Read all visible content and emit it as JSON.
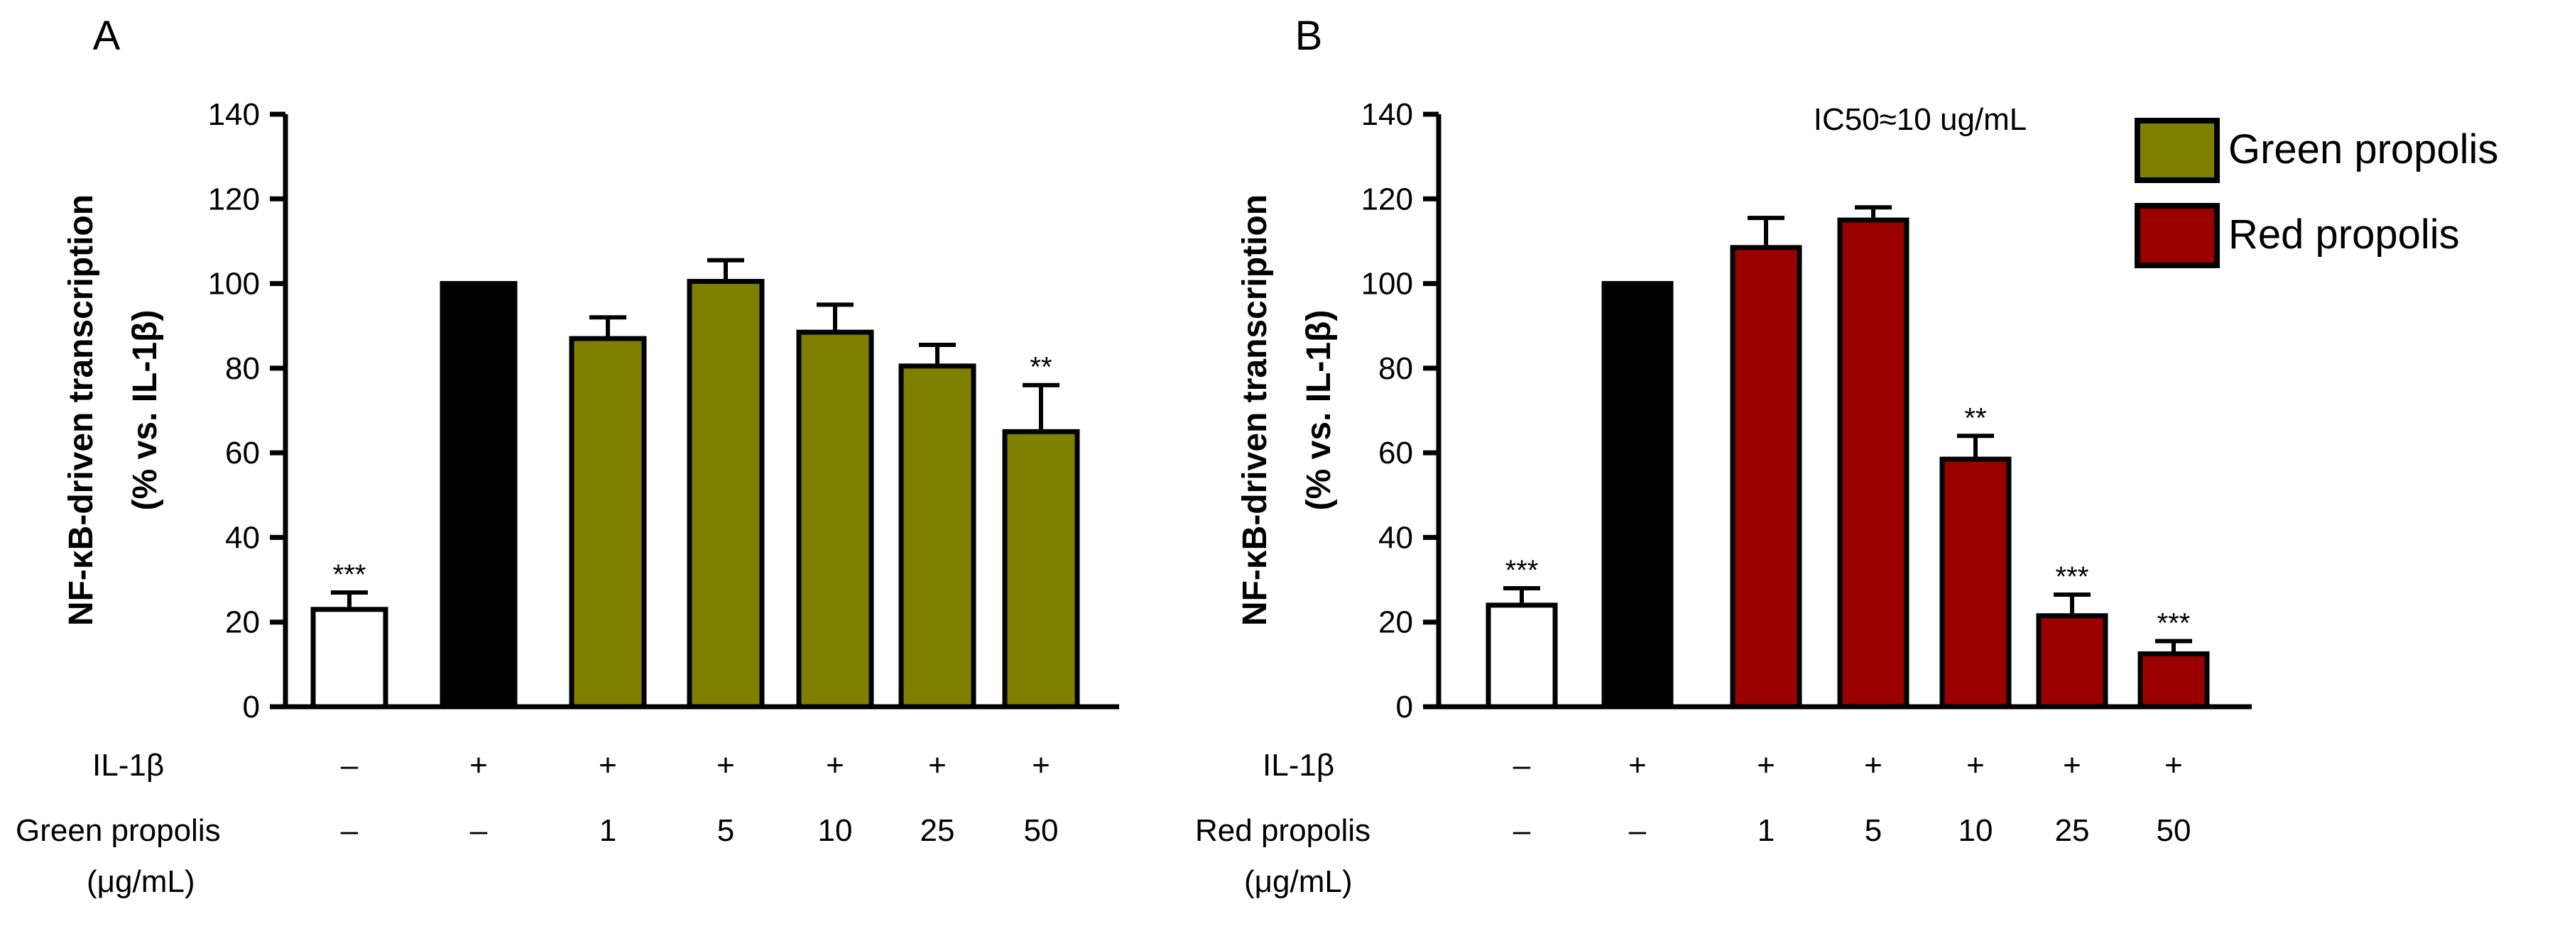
{
  "chart_data": [
    {
      "panel_label": "A",
      "type": "bar",
      "ylabel_line1": "NF-κB-driven transcription",
      "ylabel_line2": "(% vs. IL-1β)",
      "ylim": [
        0,
        140
      ],
      "yticks": [
        "0",
        "20",
        "40",
        "60",
        "80",
        "100",
        "120",
        "140"
      ],
      "values": [
        23,
        100,
        87,
        100.5,
        88.5,
        80.5,
        65
      ],
      "errors": [
        4,
        0,
        5,
        5,
        6.5,
        5,
        11
      ],
      "fills": [
        "#ffffff",
        "#000000",
        "#808000",
        "#808000",
        "#808000",
        "#808000",
        "#808000"
      ],
      "significance": [
        "***",
        "",
        "",
        "",
        "",
        "",
        "**"
      ],
      "row1_label": "IL-1β",
      "row1": [
        "–",
        "+",
        "+",
        "+",
        "+",
        "+",
        "+"
      ],
      "row2_label_line1": "Green propolis",
      "row2_label_line2": "(μg/mL)",
      "row2": [
        "–",
        "–",
        "1",
        "5",
        "10",
        "25",
        "50"
      ]
    },
    {
      "panel_label": "B",
      "type": "bar",
      "ylabel_line1": "NF-κB-driven transcription",
      "ylabel_line2": "(% vs. IL-1β)",
      "ylim": [
        0,
        140
      ],
      "yticks": [
        "0",
        "20",
        "40",
        "60",
        "80",
        "100",
        "120",
        "140"
      ],
      "annotation": "IC50≈10 ug/mL",
      "values": [
        24,
        100,
        108.5,
        115,
        58.5,
        21.5,
        12.5
      ],
      "errors": [
        4,
        0,
        7,
        3,
        5.5,
        5,
        3
      ],
      "fills": [
        "#ffffff",
        "#000000",
        "#9a0000",
        "#9a0000",
        "#9a0000",
        "#9a0000",
        "#9a0000"
      ],
      "significance": [
        "***",
        "",
        "",
        "",
        "**",
        "***",
        "***"
      ],
      "row1_label": "IL-1β",
      "row1": [
        "–",
        "+",
        "+",
        "+",
        "+",
        "+",
        "+"
      ],
      "row2_label_line1": "Red propolis",
      "row2_label_line2": "(μg/mL)",
      "row2": [
        "–",
        "–",
        "1",
        "5",
        "10",
        "25",
        "50"
      ]
    }
  ],
  "legend": {
    "position": "top-right",
    "items": [
      {
        "label": "Green propolis",
        "color": "#808000"
      },
      {
        "label": "Red propolis",
        "color": "#9a0000"
      }
    ]
  }
}
